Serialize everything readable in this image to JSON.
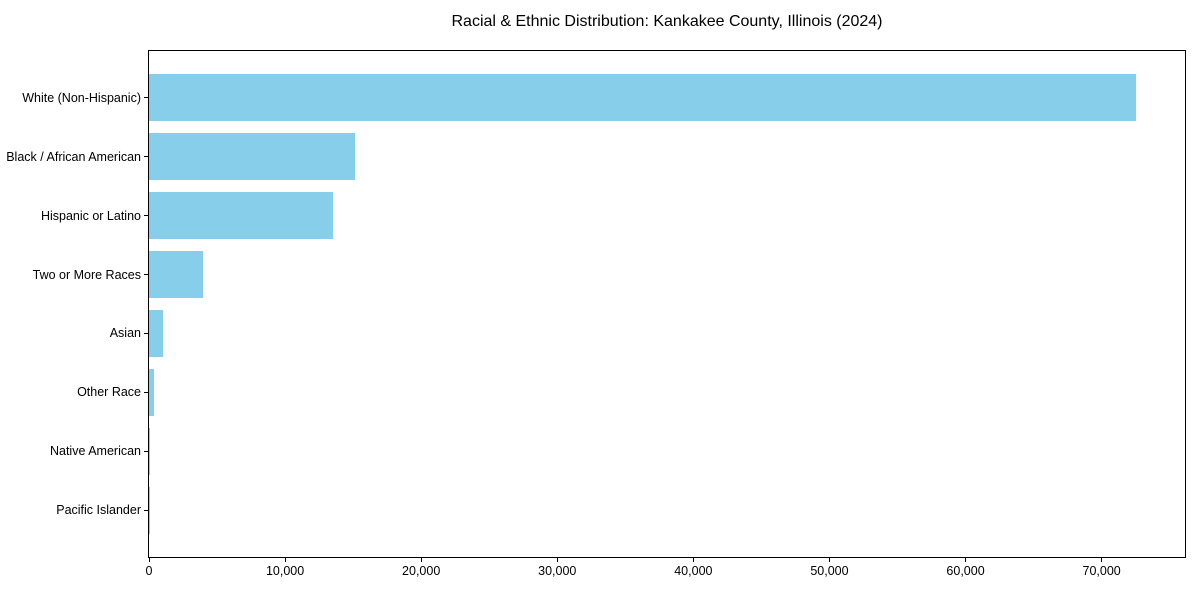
{
  "chart_data": {
    "type": "bar",
    "orientation": "horizontal",
    "title": "Racial & Ethnic Distribution: Kankakee County, Illinois (2024)",
    "categories": [
      "White (Non-Hispanic)",
      "Black / African American",
      "Hispanic or Latino",
      "Two or More Races",
      "Asian",
      "Other Race",
      "Native American",
      "Pacific Islander"
    ],
    "values": [
      72500,
      15150,
      13500,
      4000,
      1050,
      350,
      100,
      30
    ],
    "xlabel": "",
    "ylabel": "",
    "xlim": [
      0,
      76125
    ],
    "xticks": [
      0,
      10000,
      20000,
      30000,
      40000,
      50000,
      60000,
      70000
    ],
    "xtick_labels": [
      "0",
      "10,000",
      "20,000",
      "30,000",
      "40,000",
      "50,000",
      "60,000",
      "70,000"
    ],
    "bar_color": "#87CEEB",
    "axis_color": "#000000",
    "background_color": "#ffffff",
    "grid": false,
    "legend": "none"
  }
}
